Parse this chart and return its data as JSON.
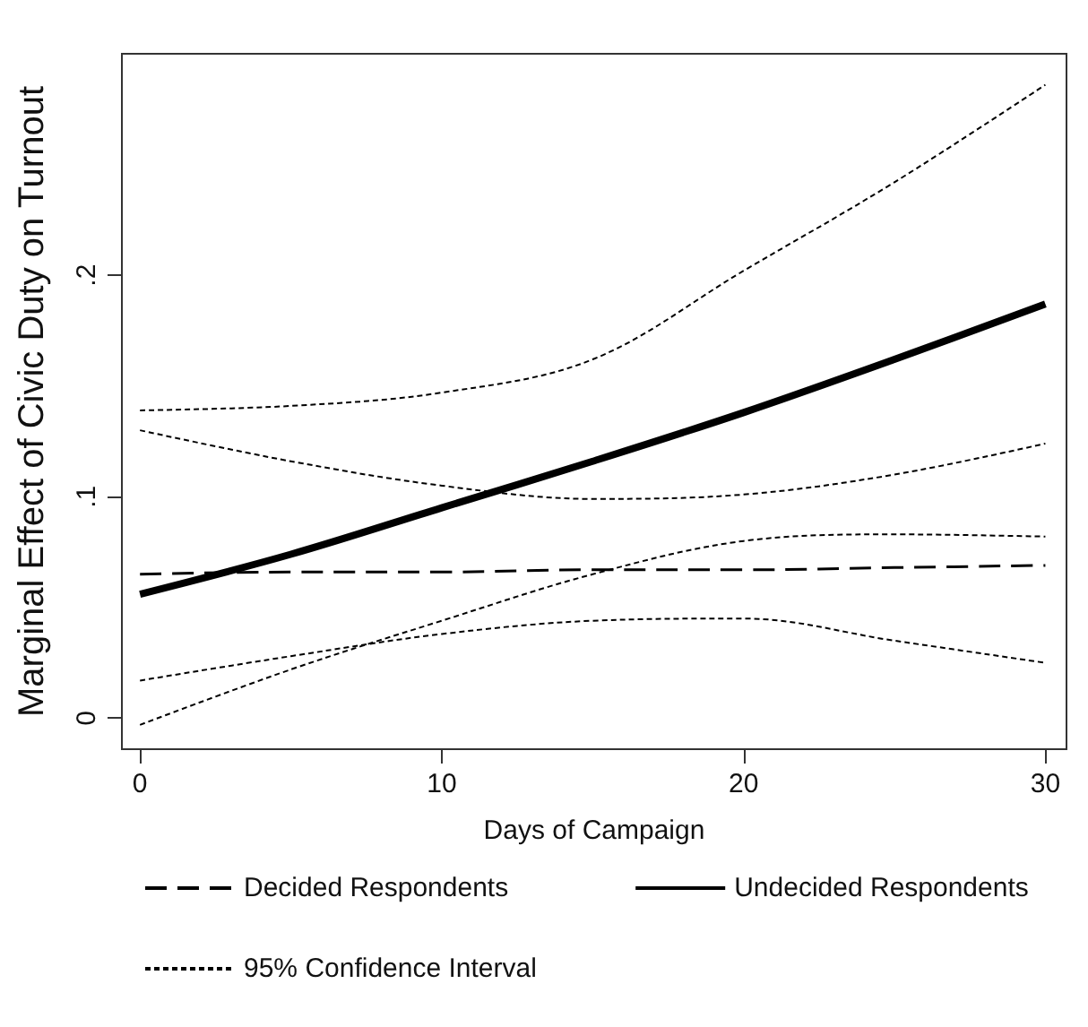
{
  "chart_data": {
    "type": "line",
    "xlabel": "Days of Campaign",
    "ylabel": "Marginal Effect of Civic Duty on Turnout",
    "xlim": [
      -0.6,
      30.7
    ],
    "ylim": [
      -0.014,
      0.3
    ],
    "xticks": [
      0,
      10,
      20,
      30
    ],
    "yticks": [
      {
        "value": 0,
        "label": "0"
      },
      {
        "value": 0.1,
        "label": ".1"
      },
      {
        "value": 0.2,
        "label": ".2"
      }
    ],
    "grid": false,
    "legend": "bottom",
    "marker": "none",
    "x": [
      0,
      5,
      10,
      15,
      20,
      25,
      30
    ],
    "series": [
      {
        "name": "Decided Respondents",
        "color": "#000000",
        "line_style": "dashed",
        "values": [
          0.065,
          0.066,
          0.066,
          0.067,
          0.067,
          0.068,
          0.069
        ]
      },
      {
        "name": "Undecided Respondents",
        "color": "#000000",
        "line_style": "solid",
        "values": [
          0.056,
          0.074,
          0.095,
          0.116,
          0.138,
          0.162,
          0.187
        ]
      },
      {
        "name": "95% Confidence Interval",
        "color": "#000000",
        "line_style": "dotted",
        "values": [
          0.139,
          0.141,
          0.147,
          0.162,
          0.202,
          0.242,
          0.286
        ]
      },
      {
        "color": "#000000",
        "line_style": "dotted",
        "values": [
          -0.003,
          0.022,
          0.044,
          0.065,
          0.08,
          0.083,
          0.082
        ]
      },
      {
        "color": "#000000",
        "line_style": "dotted",
        "values": [
          0.13,
          0.116,
          0.105,
          0.099,
          0.101,
          0.11,
          0.124
        ]
      },
      {
        "color": "#000000",
        "line_style": "dotted",
        "values": [
          0.017,
          0.028,
          0.038,
          0.044,
          0.045,
          0.035,
          0.025
        ]
      }
    ]
  }
}
